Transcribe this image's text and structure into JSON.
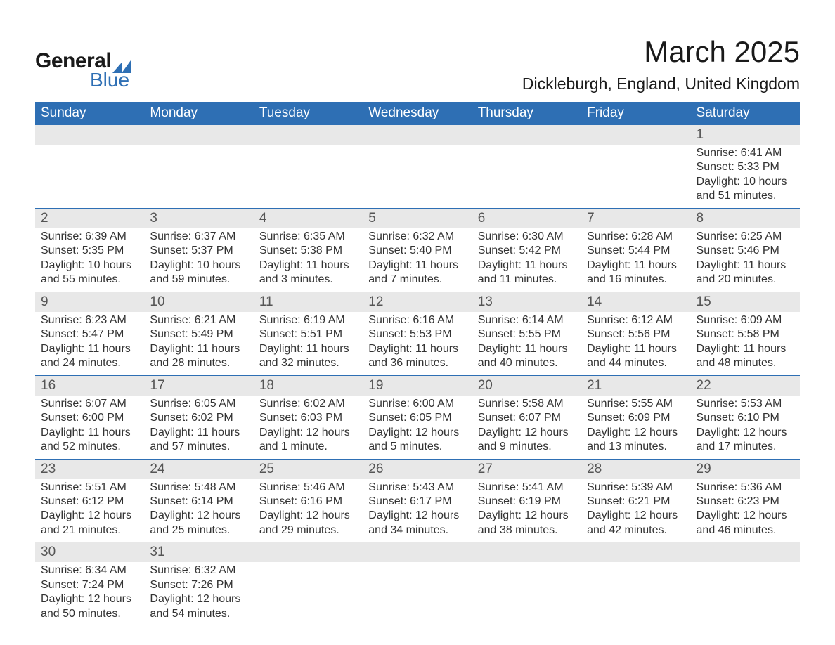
{
  "logo": {
    "word1": "General",
    "word2": "Blue",
    "shape_color": "#2e6fb4",
    "text_color": "#1a1a1a"
  },
  "header": {
    "month_title": "March 2025",
    "location": "Dickleburgh, England, United Kingdom",
    "title_fontsize": 42,
    "location_fontsize": 23
  },
  "colors": {
    "header_bg": "#2e6fb4",
    "header_text": "#ffffff",
    "daynum_bg": "#e8e8e8",
    "daynum_text": "#555555",
    "body_text": "#333333",
    "row_divider": "#2e6fb4",
    "page_bg": "#ffffff"
  },
  "day_names": [
    "Sunday",
    "Monday",
    "Tuesday",
    "Wednesday",
    "Thursday",
    "Friday",
    "Saturday"
  ],
  "weeks": [
    [
      {
        "empty": true
      },
      {
        "empty": true
      },
      {
        "empty": true
      },
      {
        "empty": true
      },
      {
        "empty": true
      },
      {
        "empty": true
      },
      {
        "day": "1",
        "sunrise": "Sunrise: 6:41 AM",
        "sunset": "Sunset: 5:33 PM",
        "daylight1": "Daylight: 10 hours",
        "daylight2": "and 51 minutes."
      }
    ],
    [
      {
        "day": "2",
        "sunrise": "Sunrise: 6:39 AM",
        "sunset": "Sunset: 5:35 PM",
        "daylight1": "Daylight: 10 hours",
        "daylight2": "and 55 minutes."
      },
      {
        "day": "3",
        "sunrise": "Sunrise: 6:37 AM",
        "sunset": "Sunset: 5:37 PM",
        "daylight1": "Daylight: 10 hours",
        "daylight2": "and 59 minutes."
      },
      {
        "day": "4",
        "sunrise": "Sunrise: 6:35 AM",
        "sunset": "Sunset: 5:38 PM",
        "daylight1": "Daylight: 11 hours",
        "daylight2": "and 3 minutes."
      },
      {
        "day": "5",
        "sunrise": "Sunrise: 6:32 AM",
        "sunset": "Sunset: 5:40 PM",
        "daylight1": "Daylight: 11 hours",
        "daylight2": "and 7 minutes."
      },
      {
        "day": "6",
        "sunrise": "Sunrise: 6:30 AM",
        "sunset": "Sunset: 5:42 PM",
        "daylight1": "Daylight: 11 hours",
        "daylight2": "and 11 minutes."
      },
      {
        "day": "7",
        "sunrise": "Sunrise: 6:28 AM",
        "sunset": "Sunset: 5:44 PM",
        "daylight1": "Daylight: 11 hours",
        "daylight2": "and 16 minutes."
      },
      {
        "day": "8",
        "sunrise": "Sunrise: 6:25 AM",
        "sunset": "Sunset: 5:46 PM",
        "daylight1": "Daylight: 11 hours",
        "daylight2": "and 20 minutes."
      }
    ],
    [
      {
        "day": "9",
        "sunrise": "Sunrise: 6:23 AM",
        "sunset": "Sunset: 5:47 PM",
        "daylight1": "Daylight: 11 hours",
        "daylight2": "and 24 minutes."
      },
      {
        "day": "10",
        "sunrise": "Sunrise: 6:21 AM",
        "sunset": "Sunset: 5:49 PM",
        "daylight1": "Daylight: 11 hours",
        "daylight2": "and 28 minutes."
      },
      {
        "day": "11",
        "sunrise": "Sunrise: 6:19 AM",
        "sunset": "Sunset: 5:51 PM",
        "daylight1": "Daylight: 11 hours",
        "daylight2": "and 32 minutes."
      },
      {
        "day": "12",
        "sunrise": "Sunrise: 6:16 AM",
        "sunset": "Sunset: 5:53 PM",
        "daylight1": "Daylight: 11 hours",
        "daylight2": "and 36 minutes."
      },
      {
        "day": "13",
        "sunrise": "Sunrise: 6:14 AM",
        "sunset": "Sunset: 5:55 PM",
        "daylight1": "Daylight: 11 hours",
        "daylight2": "and 40 minutes."
      },
      {
        "day": "14",
        "sunrise": "Sunrise: 6:12 AM",
        "sunset": "Sunset: 5:56 PM",
        "daylight1": "Daylight: 11 hours",
        "daylight2": "and 44 minutes."
      },
      {
        "day": "15",
        "sunrise": "Sunrise: 6:09 AM",
        "sunset": "Sunset: 5:58 PM",
        "daylight1": "Daylight: 11 hours",
        "daylight2": "and 48 minutes."
      }
    ],
    [
      {
        "day": "16",
        "sunrise": "Sunrise: 6:07 AM",
        "sunset": "Sunset: 6:00 PM",
        "daylight1": "Daylight: 11 hours",
        "daylight2": "and 52 minutes."
      },
      {
        "day": "17",
        "sunrise": "Sunrise: 6:05 AM",
        "sunset": "Sunset: 6:02 PM",
        "daylight1": "Daylight: 11 hours",
        "daylight2": "and 57 minutes."
      },
      {
        "day": "18",
        "sunrise": "Sunrise: 6:02 AM",
        "sunset": "Sunset: 6:03 PM",
        "daylight1": "Daylight: 12 hours",
        "daylight2": "and 1 minute."
      },
      {
        "day": "19",
        "sunrise": "Sunrise: 6:00 AM",
        "sunset": "Sunset: 6:05 PM",
        "daylight1": "Daylight: 12 hours",
        "daylight2": "and 5 minutes."
      },
      {
        "day": "20",
        "sunrise": "Sunrise: 5:58 AM",
        "sunset": "Sunset: 6:07 PM",
        "daylight1": "Daylight: 12 hours",
        "daylight2": "and 9 minutes."
      },
      {
        "day": "21",
        "sunrise": "Sunrise: 5:55 AM",
        "sunset": "Sunset: 6:09 PM",
        "daylight1": "Daylight: 12 hours",
        "daylight2": "and 13 minutes."
      },
      {
        "day": "22",
        "sunrise": "Sunrise: 5:53 AM",
        "sunset": "Sunset: 6:10 PM",
        "daylight1": "Daylight: 12 hours",
        "daylight2": "and 17 minutes."
      }
    ],
    [
      {
        "day": "23",
        "sunrise": "Sunrise: 5:51 AM",
        "sunset": "Sunset: 6:12 PM",
        "daylight1": "Daylight: 12 hours",
        "daylight2": "and 21 minutes."
      },
      {
        "day": "24",
        "sunrise": "Sunrise: 5:48 AM",
        "sunset": "Sunset: 6:14 PM",
        "daylight1": "Daylight: 12 hours",
        "daylight2": "and 25 minutes."
      },
      {
        "day": "25",
        "sunrise": "Sunrise: 5:46 AM",
        "sunset": "Sunset: 6:16 PM",
        "daylight1": "Daylight: 12 hours",
        "daylight2": "and 29 minutes."
      },
      {
        "day": "26",
        "sunrise": "Sunrise: 5:43 AM",
        "sunset": "Sunset: 6:17 PM",
        "daylight1": "Daylight: 12 hours",
        "daylight2": "and 34 minutes."
      },
      {
        "day": "27",
        "sunrise": "Sunrise: 5:41 AM",
        "sunset": "Sunset: 6:19 PM",
        "daylight1": "Daylight: 12 hours",
        "daylight2": "and 38 minutes."
      },
      {
        "day": "28",
        "sunrise": "Sunrise: 5:39 AM",
        "sunset": "Sunset: 6:21 PM",
        "daylight1": "Daylight: 12 hours",
        "daylight2": "and 42 minutes."
      },
      {
        "day": "29",
        "sunrise": "Sunrise: 5:36 AM",
        "sunset": "Sunset: 6:23 PM",
        "daylight1": "Daylight: 12 hours",
        "daylight2": "and 46 minutes."
      }
    ],
    [
      {
        "day": "30",
        "sunrise": "Sunrise: 6:34 AM",
        "sunset": "Sunset: 7:24 PM",
        "daylight1": "Daylight: 12 hours",
        "daylight2": "and 50 minutes."
      },
      {
        "day": "31",
        "sunrise": "Sunrise: 6:32 AM",
        "sunset": "Sunset: 7:26 PM",
        "daylight1": "Daylight: 12 hours",
        "daylight2": "and 54 minutes."
      },
      {
        "empty": true
      },
      {
        "empty": true
      },
      {
        "empty": true
      },
      {
        "empty": true
      },
      {
        "empty": true
      }
    ]
  ]
}
